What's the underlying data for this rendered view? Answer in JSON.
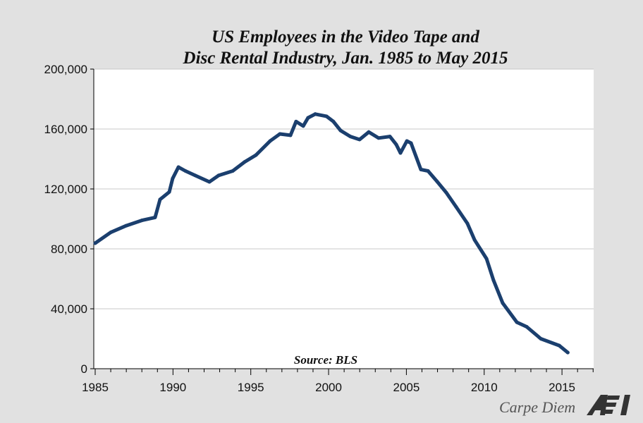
{
  "chart_data": {
    "type": "line",
    "title": "US Employees in the Video Tape and Disc Rental Industry, Jan. 1985 to May 2015",
    "title_lines": [
      "US Employees in the Video Tape and",
      "Disc Rental Industry, Jan. 1985 to May 2015"
    ],
    "annotation": "Source: BLS",
    "xlabel": "",
    "ylabel": "",
    "xlim": [
      1985,
      2017.1
    ],
    "ylim": [
      0,
      200000
    ],
    "x_ticks": [
      "1985",
      "1990",
      "1995",
      "2000",
      "2005",
      "2010",
      "2015"
    ],
    "y_ticks": [
      "0",
      "40,000",
      "80,000",
      "120,000",
      "160,000",
      "200,000"
    ],
    "grid": "horizontal",
    "line_color": "#1b3f6e",
    "series": [
      {
        "x": [
          1985.0,
          1986.0,
          1987.0,
          1988.0,
          1988.85,
          1989.17,
          1989.76,
          1989.98,
          1990.35,
          1990.8,
          1991.43,
          1992.34,
          1992.93,
          1993.84,
          1994.6,
          1995.33,
          1996.24,
          1996.87,
          1997.55,
          1997.91,
          1998.37,
          1998.68,
          1999.14,
          1999.86,
          2000.31,
          2000.77,
          2001.4,
          2001.99,
          2002.58,
          2003.21,
          2003.94,
          2004.35,
          2004.62,
          2005.03,
          2005.3,
          2005.93,
          2006.39,
          2006.97,
          2007.56,
          2008.2,
          2008.92,
          2009.38,
          2010.15,
          2010.6,
          2011.19,
          2012.1,
          2012.73,
          2013.64,
          2014.82,
          2015.37
        ],
        "y": [
          83800,
          91000,
          95500,
          99000,
          101000,
          113000,
          118000,
          127000,
          134600,
          132000,
          129000,
          124700,
          129000,
          132000,
          138000,
          142600,
          152000,
          156700,
          155800,
          165000,
          162000,
          167500,
          170000,
          168500,
          165000,
          159000,
          155000,
          153000,
          158000,
          154000,
          155000,
          149600,
          144000,
          152000,
          150600,
          133000,
          132000,
          125000,
          117600,
          108000,
          97000,
          86000,
          73400,
          59000,
          43800,
          31000,
          28000,
          20000,
          15500,
          10800
        ]
      }
    ]
  },
  "branding": {
    "blog": "Carpe Diem",
    "logo_text": "AEI"
  }
}
